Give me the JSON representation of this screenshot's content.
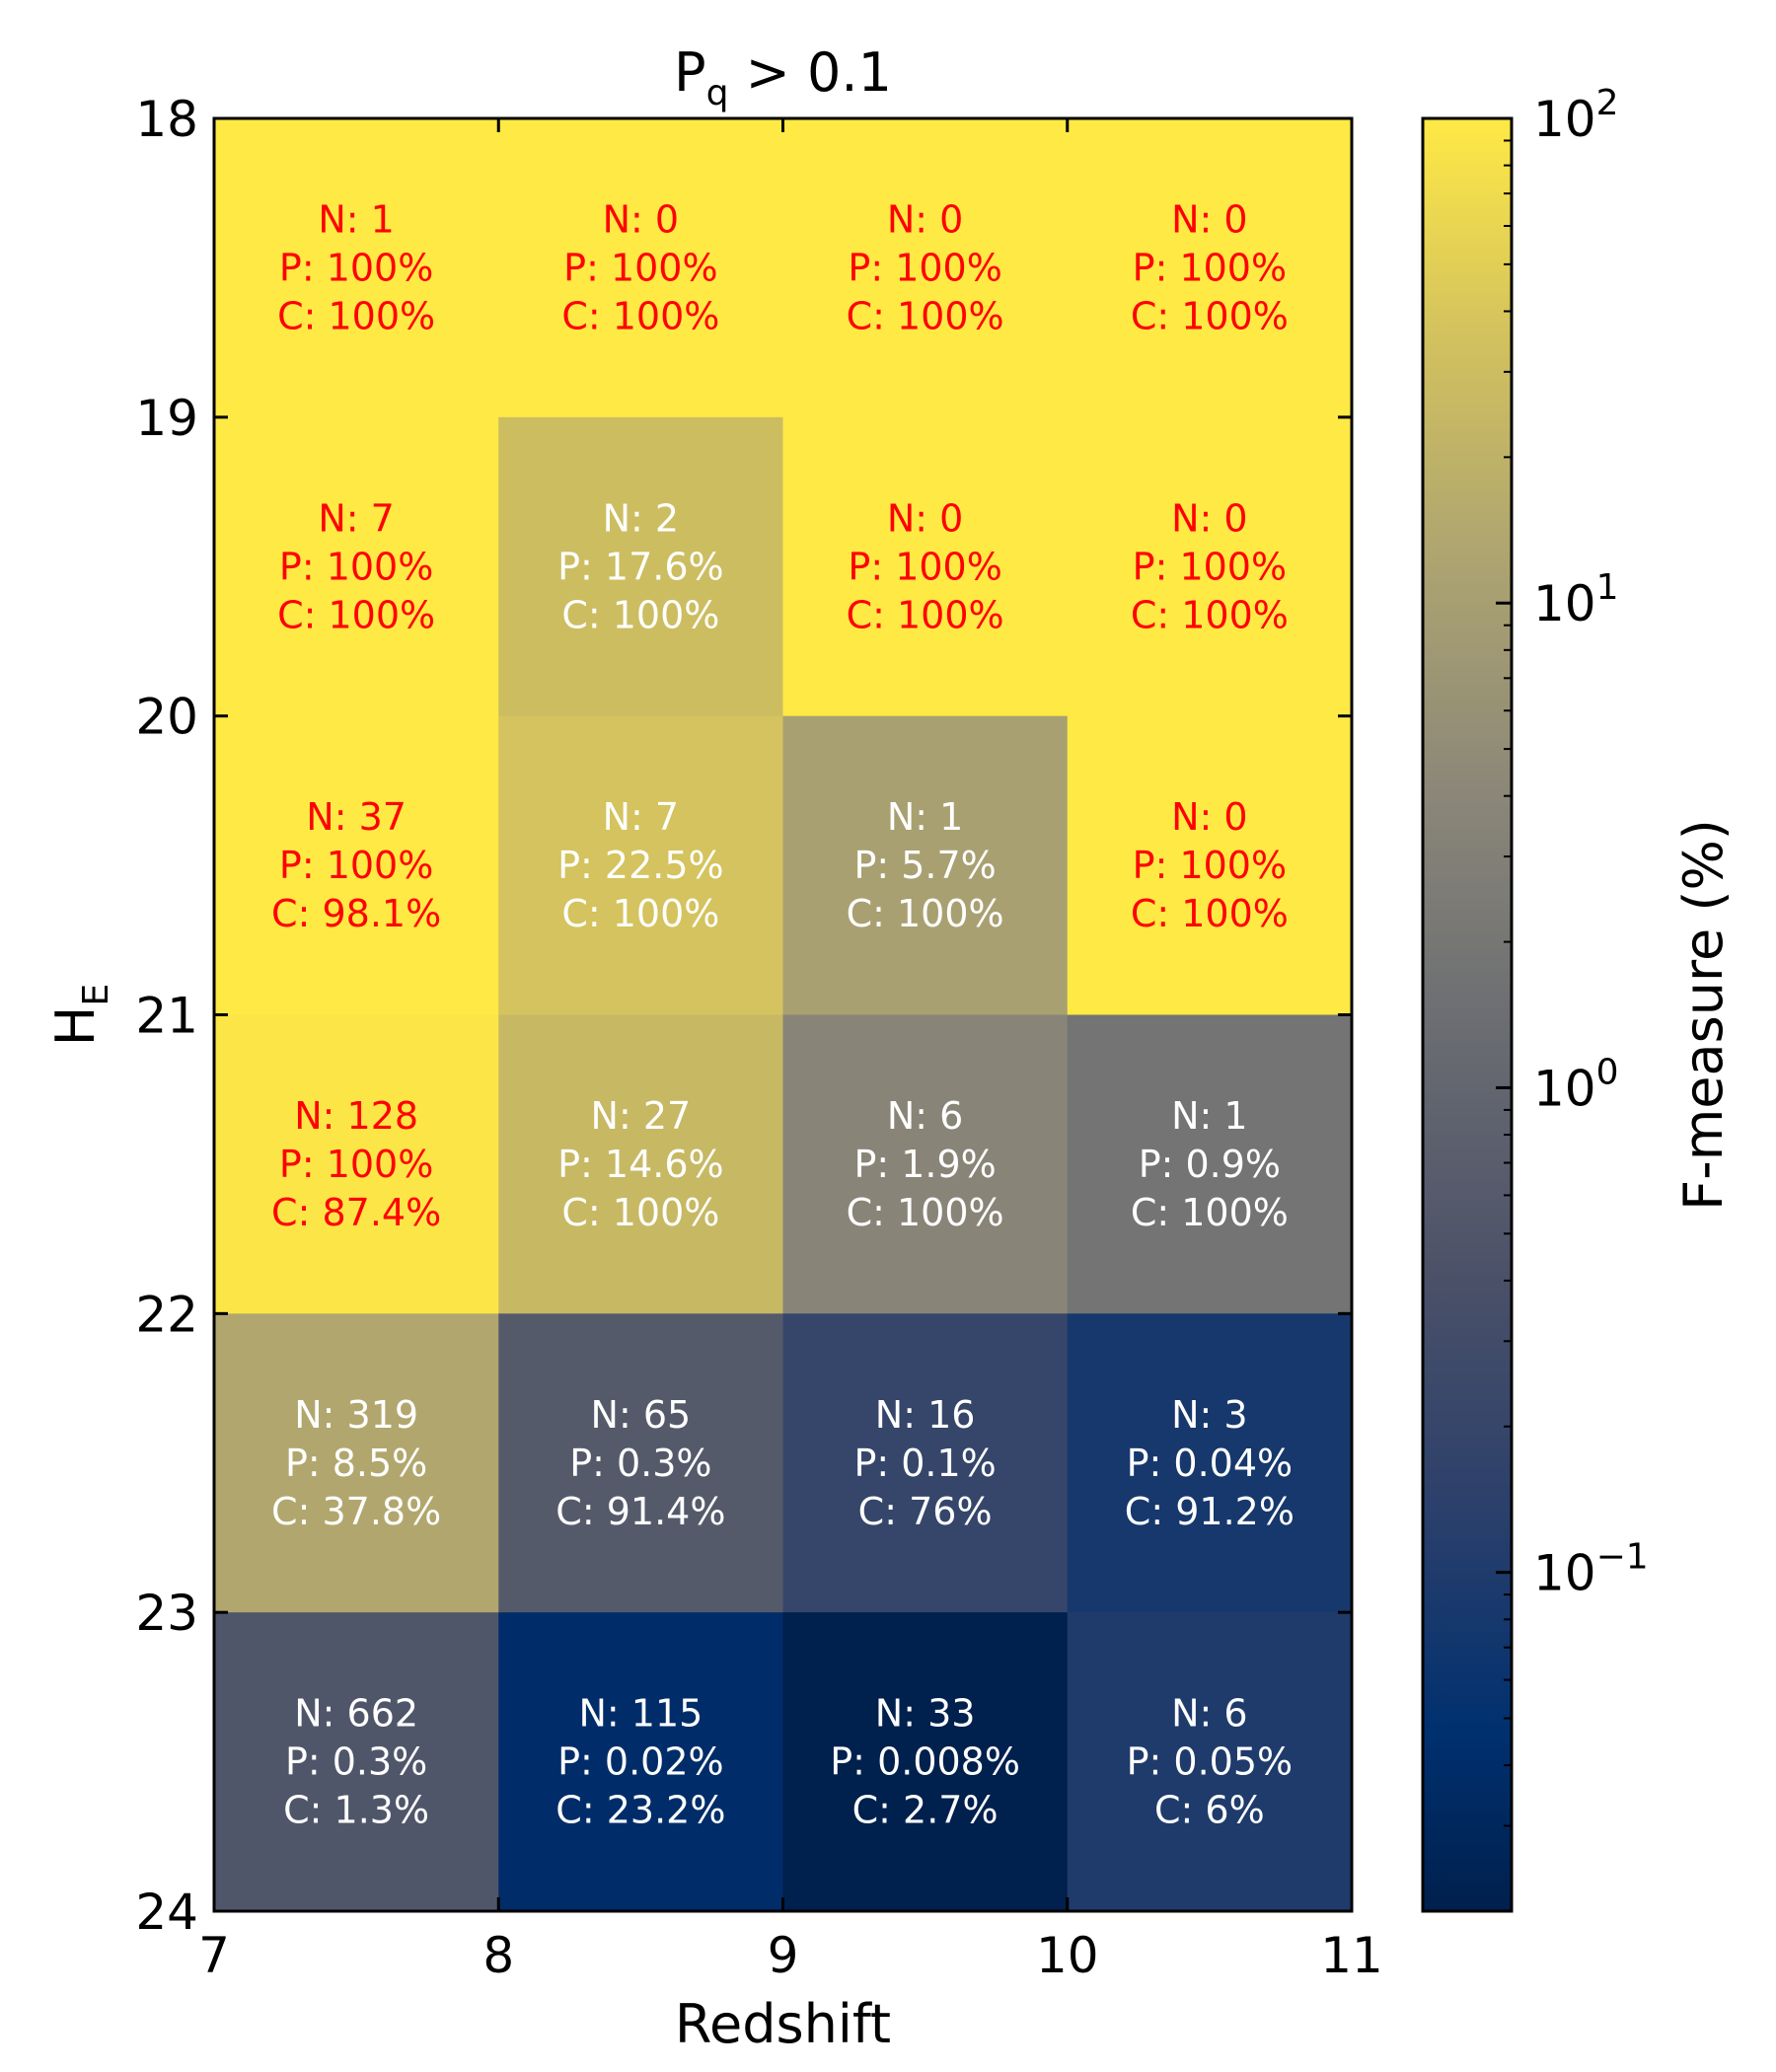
{
  "chart_data": {
    "type": "heatmap",
    "title_main": "P",
    "title_sub": "q",
    "title_rest": " > 0.1",
    "xlabel": "Redshift",
    "ylabel_main": "H",
    "ylabel_sub": "E",
    "x_edges": [
      7,
      8,
      9,
      10,
      11
    ],
    "y_edges": [
      18,
      19,
      20,
      21,
      22,
      23,
      24
    ],
    "x_ticks": [
      "7",
      "8",
      "9",
      "10",
      "11"
    ],
    "y_ticks": [
      "18",
      "19",
      "20",
      "21",
      "22",
      "23",
      "24"
    ],
    "y_inverted": true,
    "colorbar": {
      "label": "F-measure (%)",
      "scale": "log",
      "range": [
        0.02,
        100
      ],
      "ticks": [
        {
          "value": 100,
          "base": "10",
          "exp": "2"
        },
        {
          "value": 10,
          "base": "10",
          "exp": "1"
        },
        {
          "value": 1,
          "base": "10",
          "exp": "0"
        },
        {
          "value": 0.1,
          "base": "10",
          "exp": "−1"
        }
      ],
      "colormap": "cividis"
    },
    "cells": [
      {
        "x": [
          7,
          8
        ],
        "y": [
          18,
          19
        ],
        "n": "N: 1",
        "p": "P: 100%",
        "c": "C: 100%",
        "f": 100,
        "text_color": "#ff0000"
      },
      {
        "x": [
          8,
          9
        ],
        "y": [
          18,
          19
        ],
        "n": "N: 0",
        "p": "P: 100%",
        "c": "C: 100%",
        "f": 100,
        "text_color": "#ff0000"
      },
      {
        "x": [
          9,
          10
        ],
        "y": [
          18,
          19
        ],
        "n": "N: 0",
        "p": "P: 100%",
        "c": "C: 100%",
        "f": 100,
        "text_color": "#ff0000"
      },
      {
        "x": [
          10,
          11
        ],
        "y": [
          18,
          19
        ],
        "n": "N: 0",
        "p": "P: 100%",
        "c": "C: 100%",
        "f": 100,
        "text_color": "#ff0000"
      },
      {
        "x": [
          7,
          8
        ],
        "y": [
          19,
          20
        ],
        "n": "N: 7",
        "p": "P: 100%",
        "c": "C: 100%",
        "f": 100,
        "text_color": "#ff0000"
      },
      {
        "x": [
          8,
          9
        ],
        "y": [
          19,
          20
        ],
        "n": "N: 2",
        "p": "P: 17.6%",
        "c": "C: 100%",
        "f": 29.9,
        "text_color": "#ffffff"
      },
      {
        "x": [
          9,
          10
        ],
        "y": [
          19,
          20
        ],
        "n": "N: 0",
        "p": "P: 100%",
        "c": "C: 100%",
        "f": 100,
        "text_color": "#ff0000"
      },
      {
        "x": [
          10,
          11
        ],
        "y": [
          19,
          20
        ],
        "n": "N: 0",
        "p": "P: 100%",
        "c": "C: 100%",
        "f": 100,
        "text_color": "#ff0000"
      },
      {
        "x": [
          7,
          8
        ],
        "y": [
          20,
          21
        ],
        "n": "N: 37",
        "p": "P: 100%",
        "c": "C: 98.1%",
        "f": 99,
        "text_color": "#ff0000"
      },
      {
        "x": [
          8,
          9
        ],
        "y": [
          20,
          21
        ],
        "n": "N: 7",
        "p": "P: 22.5%",
        "c": "C: 100%",
        "f": 36.7,
        "text_color": "#ffffff"
      },
      {
        "x": [
          9,
          10
        ],
        "y": [
          20,
          21
        ],
        "n": "N: 1",
        "p": "P: 5.7%",
        "c": "C: 100%",
        "f": 10.8,
        "text_color": "#ffffff"
      },
      {
        "x": [
          10,
          11
        ],
        "y": [
          20,
          21
        ],
        "n": "N: 0",
        "p": "P: 100%",
        "c": "C: 100%",
        "f": 100,
        "text_color": "#ff0000"
      },
      {
        "x": [
          7,
          8
        ],
        "y": [
          21,
          22
        ],
        "n": "N: 128",
        "p": "P: 100%",
        "c": "C: 87.4%",
        "f": 93.3,
        "text_color": "#ff0000"
      },
      {
        "x": [
          8,
          9
        ],
        "y": [
          21,
          22
        ],
        "n": "N: 27",
        "p": "P: 14.6%",
        "c": "C: 100%",
        "f": 25.5,
        "text_color": "#ffffff"
      },
      {
        "x": [
          9,
          10
        ],
        "y": [
          21,
          22
        ],
        "n": "N: 6",
        "p": "P: 1.9%",
        "c": "C: 100%",
        "f": 3.7,
        "text_color": "#ffffff"
      },
      {
        "x": [
          10,
          11
        ],
        "y": [
          21,
          22
        ],
        "n": "N: 1",
        "p": "P: 0.9%",
        "c": "C: 100%",
        "f": 1.8,
        "text_color": "#ffffff"
      },
      {
        "x": [
          7,
          8
        ],
        "y": [
          22,
          23
        ],
        "n": "N: 319",
        "p": "P: 8.5%",
        "c": "C: 37.8%",
        "f": 13.9,
        "text_color": "#ffffff"
      },
      {
        "x": [
          8,
          9
        ],
        "y": [
          22,
          23
        ],
        "n": "N: 65",
        "p": "P: 0.3%",
        "c": "C: 91.4%",
        "f": 0.6,
        "text_color": "#ffffff"
      },
      {
        "x": [
          9,
          10
        ],
        "y": [
          22,
          23
        ],
        "n": "N: 16",
        "p": "P: 0.1%",
        "c": "C: 76%",
        "f": 0.2,
        "text_color": "#ffffff"
      },
      {
        "x": [
          10,
          11
        ],
        "y": [
          22,
          23
        ],
        "n": "N: 3",
        "p": "P: 0.04%",
        "c": "C: 91.2%",
        "f": 0.08,
        "text_color": "#ffffff"
      },
      {
        "x": [
          7,
          8
        ],
        "y": [
          23,
          24
        ],
        "n": "N: 662",
        "p": "P: 0.3%",
        "c": "C: 1.3%",
        "f": 0.5,
        "text_color": "#ffffff"
      },
      {
        "x": [
          8,
          9
        ],
        "y": [
          23,
          24
        ],
        "n": "N: 115",
        "p": "P: 0.02%",
        "c": "C: 23.2%",
        "f": 0.04,
        "text_color": "#ffffff"
      },
      {
        "x": [
          9,
          10
        ],
        "y": [
          23,
          24
        ],
        "n": "N: 33",
        "p": "P: 0.008%",
        "c": "C: 2.7%",
        "f": 0.02,
        "text_color": "#ffffff"
      },
      {
        "x": [
          10,
          11
        ],
        "y": [
          23,
          24
        ],
        "n": "N: 6",
        "p": "P: 0.05%",
        "c": "C: 6%",
        "f": 0.1,
        "text_color": "#ffffff"
      }
    ]
  }
}
